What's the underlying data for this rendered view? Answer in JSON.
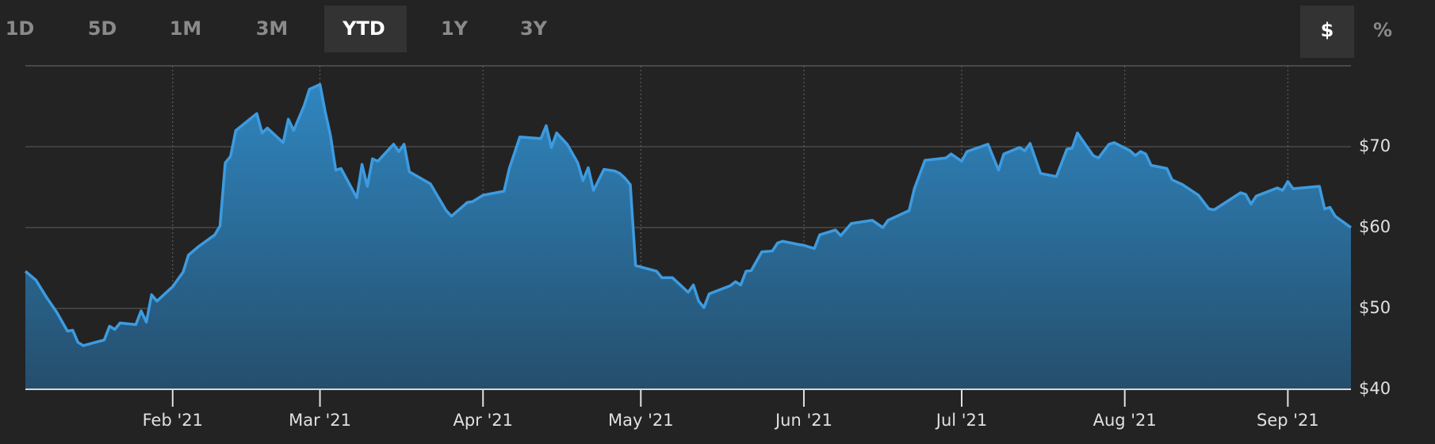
{
  "tabs": [
    "1D",
    "5D",
    "1M",
    "3M",
    "YTD",
    "1Y",
    "3Y"
  ],
  "active_tab": 4,
  "units": [
    "$",
    "%"
  ],
  "active_unit": 0,
  "chart_data": {
    "type": "area",
    "color": "#3d9be0",
    "x": [
      "2021-01-04",
      "2021-01-06",
      "2021-01-08",
      "2021-01-10",
      "2021-01-12",
      "2021-01-13",
      "2021-01-14",
      "2021-01-15",
      "2021-01-19",
      "2021-01-20",
      "2021-01-21",
      "2021-01-22",
      "2021-01-25",
      "2021-01-26",
      "2021-01-27",
      "2021-01-28",
      "2021-01-29",
      "2021-02-01",
      "2021-02-03",
      "2021-02-04",
      "2021-02-06",
      "2021-02-09",
      "2021-02-10",
      "2021-02-11",
      "2021-02-12",
      "2021-02-13",
      "2021-02-17",
      "2021-02-18",
      "2021-02-19",
      "2021-02-22",
      "2021-02-23",
      "2021-02-24",
      "2021-02-26",
      "2021-02-27",
      "2021-03-01",
      "2021-03-02",
      "2021-03-03",
      "2021-03-04",
      "2021-03-05",
      "2021-03-08",
      "2021-03-09",
      "2021-03-10",
      "2021-03-11",
      "2021-03-12",
      "2021-03-15",
      "2021-03-16",
      "2021-03-17",
      "2021-03-18",
      "2021-03-22",
      "2021-03-23",
      "2021-03-25",
      "2021-03-26",
      "2021-03-29",
      "2021-03-30",
      "2021-04-01",
      "2021-04-05",
      "2021-04-06",
      "2021-04-08",
      "2021-04-12",
      "2021-04-13",
      "2021-04-14",
      "2021-04-15",
      "2021-04-17",
      "2021-04-19",
      "2021-04-20",
      "2021-04-21",
      "2021-04-22",
      "2021-04-24",
      "2021-04-26",
      "2021-04-27",
      "2021-04-28",
      "2021-04-29",
      "2021-04-30",
      "2021-05-04",
      "2021-05-05",
      "2021-05-07",
      "2021-05-10",
      "2021-05-11",
      "2021-05-12",
      "2021-05-13",
      "2021-05-14",
      "2021-05-18",
      "2021-05-19",
      "2021-05-20",
      "2021-05-21",
      "2021-05-22",
      "2021-05-24",
      "2021-05-26",
      "2021-05-27",
      "2021-05-28",
      "2021-05-31",
      "2021-06-01",
      "2021-06-03",
      "2021-06-04",
      "2021-06-07",
      "2021-06-08",
      "2021-06-10",
      "2021-06-14",
      "2021-06-16",
      "2021-06-17",
      "2021-06-21",
      "2021-06-22",
      "2021-06-24",
      "2021-06-28",
      "2021-06-29",
      "2021-07-01",
      "2021-07-02",
      "2021-07-06",
      "2021-07-08",
      "2021-07-09",
      "2021-07-12",
      "2021-07-13",
      "2021-07-14",
      "2021-07-16",
      "2021-07-19",
      "2021-07-21",
      "2021-07-22",
      "2021-07-23",
      "2021-07-26",
      "2021-07-27",
      "2021-07-29",
      "2021-07-30",
      "2021-08-02",
      "2021-08-03",
      "2021-08-04",
      "2021-08-05",
      "2021-08-06",
      "2021-08-09",
      "2021-08-10",
      "2021-08-12",
      "2021-08-15",
      "2021-08-17",
      "2021-08-18",
      "2021-08-23",
      "2021-08-24",
      "2021-08-25",
      "2021-08-26",
      "2021-08-30",
      "2021-08-31",
      "2021-09-01",
      "2021-09-02",
      "2021-09-07",
      "2021-09-08",
      "2021-09-09",
      "2021-09-10",
      "2021-09-13"
    ],
    "values": [
      54.6,
      53.5,
      51.4,
      49.5,
      47.2,
      47.3,
      45.8,
      45.4,
      46.1,
      47.8,
      47.4,
      48.2,
      48.0,
      49.7,
      48.3,
      51.7,
      50.9,
      52.7,
      54.5,
      56.6,
      57.7,
      59.1,
      60.2,
      68.0,
      68.8,
      72.0,
      74.1,
      71.7,
      72.3,
      70.5,
      73.4,
      72.0,
      75.1,
      77.1,
      77.7,
      74.3,
      71.4,
      67.1,
      67.3,
      63.7,
      67.8,
      65.1,
      68.5,
      68.2,
      70.3,
      69.4,
      70.3,
      66.9,
      65.4,
      64.3,
      62.1,
      61.4,
      63.1,
      63.2,
      64.0,
      64.5,
      67.3,
      71.2,
      71.0,
      72.6,
      69.9,
      71.7,
      70.3,
      68.0,
      65.8,
      67.4,
      64.6,
      67.2,
      67.0,
      66.7,
      66.1,
      65.3,
      55.3,
      54.6,
      53.8,
      53.8,
      52.0,
      52.9,
      50.9,
      50.1,
      51.8,
      52.8,
      53.3,
      52.9,
      54.6,
      54.7,
      57.0,
      57.1,
      58.1,
      58.3,
      57.9,
      57.8,
      57.4,
      59.1,
      59.7,
      59.0,
      60.5,
      60.9,
      60.0,
      60.9,
      62.1,
      64.8,
      68.3,
      68.6,
      69.1,
      68.2,
      69.4,
      70.3,
      67.1,
      69.1,
      69.9,
      69.5,
      70.4,
      66.7,
      66.3,
      69.7,
      69.8,
      71.7,
      68.9,
      68.6,
      70.3,
      70.5,
      69.5,
      68.9,
      69.4,
      69.1,
      67.7,
      67.3,
      65.9,
      65.3,
      64.0,
      62.3,
      62.2,
      64.3,
      64.1,
      62.9,
      63.9,
      64.9,
      64.6,
      65.7,
      64.8,
      65.1,
      62.3,
      62.5,
      61.4,
      60.0
    ],
    "xlim": [
      "2021-01-04",
      "2021-09-13"
    ],
    "xticks": [
      {
        "value": "2021-02-01",
        "label": "Feb '21"
      },
      {
        "value": "2021-03-01",
        "label": "Mar '21"
      },
      {
        "value": "2021-04-01",
        "label": "Apr '21"
      },
      {
        "value": "2021-05-01",
        "label": "May '21"
      },
      {
        "value": "2021-06-01",
        "label": "Jun '21"
      },
      {
        "value": "2021-07-01",
        "label": "Jul '21"
      },
      {
        "value": "2021-08-01",
        "label": "Aug '21"
      },
      {
        "value": "2021-09-01",
        "label": "Sep '21"
      }
    ],
    "ylim": [
      40,
      80
    ],
    "yticks": [
      {
        "value": 40,
        "label": "$40"
      },
      {
        "value": 50,
        "label": "$50"
      },
      {
        "value": 60,
        "label": "$60"
      },
      {
        "value": 70,
        "label": "$70"
      }
    ],
    "grid": true
  }
}
